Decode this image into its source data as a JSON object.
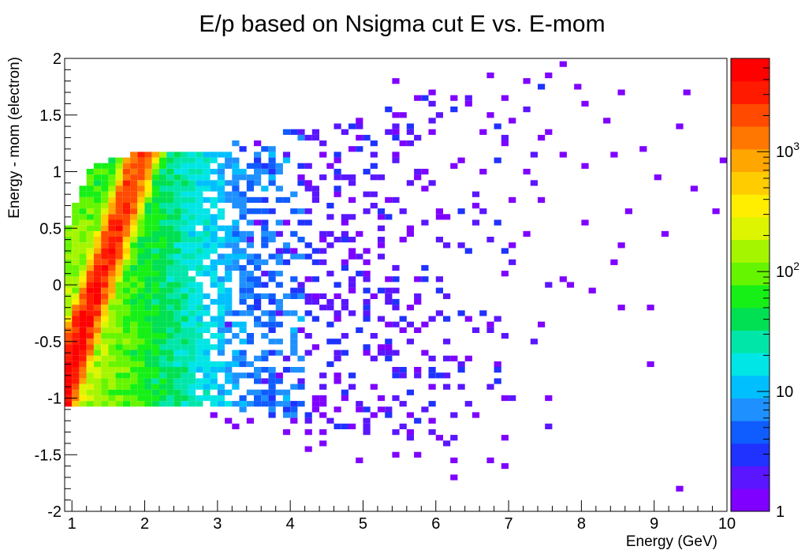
{
  "chart_data": {
    "type": "heatmap",
    "title": "E/p based on Nsigma cut E vs. E-mom",
    "xlabel": "Energy (GeV)",
    "ylabel": "Energy - mom (electron)",
    "xlim": [
      0.9,
      10
    ],
    "ylim": [
      -2,
      2
    ],
    "x_ticks": [
      "1",
      "2",
      "3",
      "4",
      "5",
      "6",
      "7",
      "8",
      "9",
      "10"
    ],
    "y_ticks": [
      "-2",
      "-1.5",
      "-1",
      "-0.5",
      "0",
      "0.5",
      "1",
      "1.5",
      "2"
    ],
    "z_scale": "log",
    "z_range": [
      1,
      6000
    ],
    "z_ticks": [
      "1",
      "10",
      "10^2",
      "10^3"
    ],
    "palette": [
      "#7f00ff",
      "#5a16ff",
      "#1f32ff",
      "#0f5cff",
      "#1e90ff",
      "#00bfff",
      "#00e5e5",
      "#00e6a8",
      "#00e052",
      "#16f016",
      "#66f500",
      "#a6f500",
      "#ddf500",
      "#ffee00",
      "#ffcc00",
      "#ffa600",
      "#ff7700",
      "#ff4a00",
      "#ff1a00",
      "#ff0000"
    ],
    "grid": false,
    "bins": {
      "x_width": 0.1,
      "y_width": 0.05
    },
    "density_regions": [
      {
        "shape": "band",
        "x": [
          0.95,
          2.3
        ],
        "y_along": [
          -1.05,
          1.2
        ],
        "peak_count": 6000
      },
      {
        "shape": "body",
        "x": [
          0.95,
          3.8
        ],
        "y": [
          -1.05,
          1.2
        ],
        "count": "10-300"
      },
      {
        "shape": "cloud",
        "x": [
          3.0,
          10.0
        ],
        "y": [
          -1.8,
          1.95
        ],
        "count": "1-5"
      }
    ],
    "points": [
      [
        7.8,
        1.95
      ],
      [
        6.8,
        1.85
      ],
      [
        7.6,
        1.85
      ],
      [
        5.5,
        1.8
      ],
      [
        7.9,
        1.75
      ],
      [
        5.9,
        1.7
      ],
      [
        6.3,
        1.65
      ],
      [
        8.5,
        1.7
      ],
      [
        9.4,
        1.7
      ],
      [
        5.8,
        1.65
      ],
      [
        6.5,
        1.6
      ],
      [
        7.0,
        1.65
      ],
      [
        8.0,
        1.6
      ],
      [
        6.7,
        1.5
      ],
      [
        7.1,
        1.45
      ],
      [
        8.3,
        1.45
      ],
      [
        9.3,
        1.4
      ],
      [
        7.5,
        1.35
      ],
      [
        6.0,
        1.35
      ],
      [
        6.9,
        1.25
      ],
      [
        8.8,
        1.2
      ],
      [
        9.9,
        1.1
      ],
      [
        7.7,
        1.15
      ],
      [
        8.4,
        1.15
      ],
      [
        6.2,
        1.05
      ],
      [
        7.3,
        1.0
      ],
      [
        8.1,
        1.05
      ],
      [
        9.0,
        0.95
      ],
      [
        9.5,
        0.85
      ],
      [
        9.8,
        0.65
      ],
      [
        8.7,
        0.65
      ],
      [
        8.0,
        0.55
      ],
      [
        7.4,
        0.75
      ],
      [
        6.6,
        0.7
      ],
      [
        6.1,
        0.6
      ],
      [
        9.1,
        0.45
      ],
      [
        8.6,
        0.35
      ],
      [
        7.2,
        0.45
      ],
      [
        8.4,
        0.2
      ],
      [
        7.8,
        0.05
      ],
      [
        8.2,
        -0.05
      ],
      [
        7.0,
        0.1
      ],
      [
        8.5,
        -0.2
      ],
      [
        8.9,
        -0.2
      ],
      [
        6.5,
        -0.3
      ],
      [
        7.4,
        -0.35
      ],
      [
        6.8,
        -0.35
      ],
      [
        8.9,
        -0.7
      ],
      [
        6.0,
        -0.9
      ],
      [
        7.6,
        -1.0
      ],
      [
        6.9,
        -1.0
      ],
      [
        6.5,
        -0.65
      ],
      [
        5.7,
        -0.75
      ],
      [
        5.3,
        -0.55
      ],
      [
        4.9,
        -1.1
      ],
      [
        5.2,
        -1.1
      ],
      [
        4.7,
        -1.25
      ],
      [
        4.4,
        -1.3
      ],
      [
        4.2,
        -1.3
      ],
      [
        4.0,
        -1.3
      ],
      [
        3.5,
        -1.2
      ],
      [
        3.1,
        -1.2
      ],
      [
        3.2,
        -1.25
      ],
      [
        4.3,
        -1.45
      ],
      [
        4.5,
        -1.4
      ],
      [
        5.0,
        -1.55
      ],
      [
        5.4,
        -1.5
      ],
      [
        5.8,
        -1.5
      ],
      [
        6.3,
        -1.55
      ],
      [
        6.9,
        -1.35
      ],
      [
        6.8,
        -1.55
      ],
      [
        7.0,
        -1.6
      ],
      [
        6.2,
        -1.7
      ],
      [
        9.3,
        -1.8
      ],
      [
        3.0,
        -1.15
      ],
      [
        5.9,
        -1.2
      ]
    ]
  }
}
